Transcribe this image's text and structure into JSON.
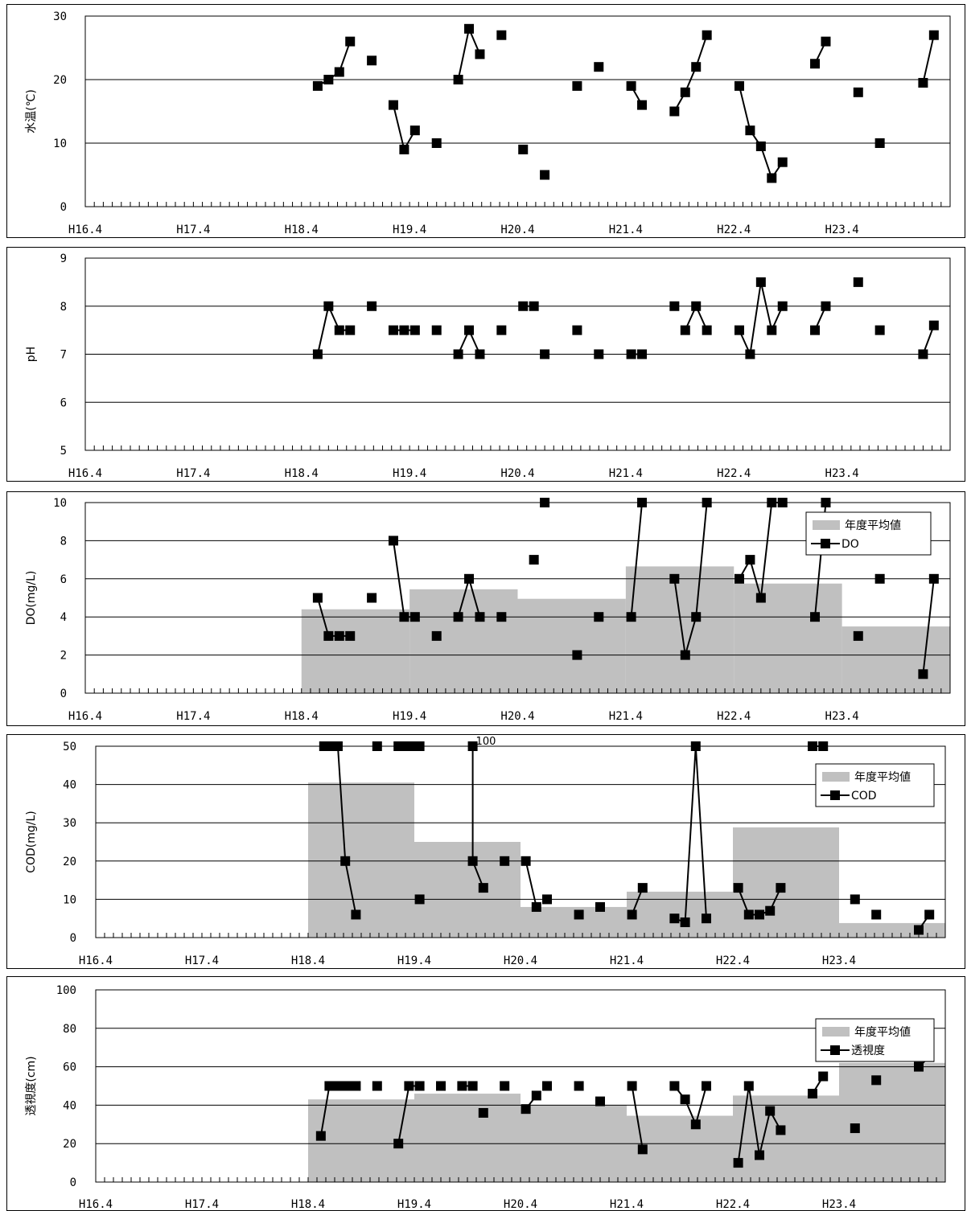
{
  "x_ticks": [
    "H16.4",
    "H17.4",
    "H18.4",
    "H19.4",
    "H20.4",
    "H21.4",
    "H22.4",
    "H23.4"
  ],
  "chart_data": [
    {
      "id": "temp",
      "type": "line",
      "ylabel": "水温(℃)",
      "ylim": [
        0,
        30
      ],
      "yticks": [
        0,
        10,
        20,
        30
      ],
      "grid": true,
      "legend": null,
      "segments": [
        [
          [
            2.15,
            19
          ],
          [
            2.25,
            20
          ],
          [
            2.35,
            21.2
          ],
          [
            2.45,
            26
          ]
        ],
        [
          [
            2.65,
            23
          ]
        ],
        [
          [
            2.85,
            16
          ],
          [
            2.95,
            9
          ],
          [
            3.05,
            12
          ]
        ],
        [
          [
            3.25,
            10
          ]
        ],
        [
          [
            3.45,
            20
          ],
          [
            3.55,
            28
          ],
          [
            3.65,
            24
          ]
        ],
        [
          [
            3.85,
            27
          ]
        ],
        [
          [
            4.05,
            9
          ]
        ],
        [
          [
            4.25,
            5
          ]
        ],
        [
          [
            4.55,
            19
          ]
        ],
        [
          [
            4.75,
            22
          ]
        ],
        [
          [
            5.05,
            19
          ],
          [
            5.15,
            16
          ]
        ],
        [
          [
            5.45,
            15
          ],
          [
            5.55,
            18
          ],
          [
            5.65,
            22
          ],
          [
            5.75,
            27
          ]
        ],
        [
          [
            6.05,
            19
          ],
          [
            6.15,
            12
          ],
          [
            6.25,
            9.5
          ],
          [
            6.35,
            4.5
          ],
          [
            6.45,
            7
          ]
        ],
        [
          [
            6.75,
            22.5
          ],
          [
            6.85,
            26
          ]
        ],
        [
          [
            7.15,
            18
          ]
        ],
        [
          [
            7.35,
            10
          ]
        ],
        [
          [
            7.75,
            19.5
          ],
          [
            7.85,
            27
          ]
        ]
      ]
    },
    {
      "id": "ph",
      "type": "line",
      "ylabel": "pH",
      "ylim": [
        5,
        9
      ],
      "yticks": [
        5,
        6,
        7,
        8,
        9
      ],
      "grid": true,
      "legend": null,
      "segments": [
        [
          [
            2.15,
            7
          ],
          [
            2.25,
            8
          ],
          [
            2.35,
            7.5
          ],
          [
            2.45,
            7.5
          ]
        ],
        [
          [
            2.65,
            8
          ]
        ],
        [
          [
            2.85,
            7.5
          ],
          [
            2.95,
            7.5
          ],
          [
            3.05,
            7.5
          ]
        ],
        [
          [
            3.25,
            7.5
          ]
        ],
        [
          [
            3.45,
            7
          ],
          [
            3.55,
            7.5
          ],
          [
            3.65,
            7
          ]
        ],
        [
          [
            3.85,
            7.5
          ]
        ],
        [
          [
            4.05,
            8
          ],
          [
            4.15,
            8
          ]
        ],
        [
          [
            4.25,
            7
          ]
        ],
        [
          [
            4.55,
            7.5
          ]
        ],
        [
          [
            4.75,
            7
          ]
        ],
        [
          [
            5.05,
            7
          ],
          [
            5.15,
            7
          ]
        ],
        [
          [
            5.45,
            8
          ]
        ],
        [
          [
            5.55,
            7.5
          ],
          [
            5.65,
            8
          ],
          [
            5.75,
            7.5
          ]
        ],
        [
          [
            6.05,
            7.5
          ],
          [
            6.15,
            7
          ],
          [
            6.25,
            8.5
          ],
          [
            6.35,
            7.5
          ],
          [
            6.45,
            8
          ]
        ],
        [
          [
            6.75,
            7.5
          ],
          [
            6.85,
            8
          ]
        ],
        [
          [
            7.15,
            8.5
          ]
        ],
        [
          [
            7.35,
            7.5
          ]
        ],
        [
          [
            7.75,
            7
          ],
          [
            7.85,
            7.6
          ]
        ]
      ]
    },
    {
      "id": "do",
      "type": "line",
      "ylabel": "DO(mg/L)",
      "ylim": [
        0,
        10
      ],
      "yticks": [
        0,
        2,
        4,
        6,
        8,
        10
      ],
      "grid": true,
      "legend": {
        "avg": "年度平均値",
        "series": "DO"
      },
      "annual_average": [
        {
          "from": 2,
          "to": 3,
          "value": 4.4
        },
        {
          "from": 3,
          "to": 4,
          "value": 5.45
        },
        {
          "from": 4,
          "to": 5,
          "value": 4.95
        },
        {
          "from": 5,
          "to": 6,
          "value": 6.65
        },
        {
          "from": 6,
          "to": 7,
          "value": 5.75
        },
        {
          "from": 7,
          "to": 8,
          "value": 3.5
        }
      ],
      "segments": [
        [
          [
            2.15,
            5
          ],
          [
            2.25,
            3
          ],
          [
            2.35,
            3
          ],
          [
            2.45,
            3
          ]
        ],
        [
          [
            2.65,
            5
          ]
        ],
        [
          [
            2.85,
            8
          ],
          [
            2.95,
            4
          ],
          [
            3.05,
            4
          ]
        ],
        [
          [
            3.25,
            3
          ]
        ],
        [
          [
            3.45,
            4
          ],
          [
            3.55,
            6
          ],
          [
            3.65,
            4
          ]
        ],
        [
          [
            3.85,
            4
          ]
        ],
        [
          [
            4.15,
            7
          ]
        ],
        [
          [
            4.25,
            10
          ]
        ],
        [
          [
            4.55,
            2
          ]
        ],
        [
          [
            4.75,
            4
          ]
        ],
        [
          [
            5.05,
            4
          ],
          [
            5.15,
            10
          ]
        ],
        [
          [
            5.45,
            6
          ],
          [
            5.55,
            2
          ],
          [
            5.65,
            4
          ],
          [
            5.75,
            10
          ]
        ],
        [
          [
            6.05,
            6
          ],
          [
            6.15,
            7
          ],
          [
            6.25,
            5
          ],
          [
            6.35,
            10
          ],
          [
            6.45,
            10
          ]
        ],
        [
          [
            6.75,
            4
          ],
          [
            6.85,
            10
          ]
        ],
        [
          [
            7.15,
            3
          ]
        ],
        [
          [
            7.35,
            6
          ]
        ],
        [
          [
            7.75,
            1
          ],
          [
            7.85,
            6
          ]
        ]
      ]
    },
    {
      "id": "cod",
      "type": "line",
      "ylabel": "COD(mg/L)",
      "ylim": [
        0,
        50
      ],
      "yticks": [
        0,
        10,
        20,
        30,
        40,
        50
      ],
      "grid": true,
      "legend": {
        "avg": "年度平均値",
        "series": "COD"
      },
      "annotation": {
        "text": "100",
        "x": 3.58,
        "y": 50
      },
      "annual_average": [
        {
          "from": 2,
          "to": 3,
          "value": 40.5
        },
        {
          "from": 3,
          "to": 4,
          "value": 25
        },
        {
          "from": 4,
          "to": 5,
          "value": 8
        },
        {
          "from": 5,
          "to": 6,
          "value": 12
        },
        {
          "from": 6,
          "to": 7,
          "value": 28.8
        },
        {
          "from": 7,
          "to": 8,
          "value": 3.8
        }
      ],
      "segments": [
        [
          [
            2.15,
            50
          ],
          [
            2.22,
            50
          ],
          [
            2.28,
            50
          ],
          [
            2.35,
            20
          ],
          [
            2.45,
            6
          ]
        ],
        [
          [
            2.65,
            50
          ]
        ],
        [
          [
            2.85,
            50
          ],
          [
            2.92,
            50
          ],
          [
            2.98,
            50
          ],
          [
            3.05,
            50
          ]
        ],
        [
          [
            3.05,
            10
          ]
        ],
        [
          [
            3.55,
            100
          ],
          [
            3.55,
            20
          ],
          [
            3.65,
            13
          ]
        ],
        [
          [
            3.85,
            20
          ]
        ],
        [
          [
            4.05,
            20
          ],
          [
            4.15,
            8
          ]
        ],
        [
          [
            4.25,
            10
          ]
        ],
        [
          [
            4.55,
            6
          ]
        ],
        [
          [
            4.75,
            8
          ]
        ],
        [
          [
            5.05,
            6
          ],
          [
            5.15,
            13
          ]
        ],
        [
          [
            5.45,
            5
          ],
          [
            5.55,
            4
          ],
          [
            5.65,
            50
          ],
          [
            5.75,
            5
          ]
        ],
        [
          [
            6.05,
            13
          ],
          [
            6.15,
            6
          ],
          [
            6.25,
            6
          ],
          [
            6.35,
            7
          ],
          [
            6.45,
            13
          ]
        ],
        [
          [
            6.75,
            50
          ],
          [
            6.85,
            50
          ]
        ],
        [
          [
            7.15,
            10
          ]
        ],
        [
          [
            7.35,
            6
          ]
        ],
        [
          [
            7.75,
            2
          ],
          [
            7.85,
            6
          ]
        ]
      ]
    },
    {
      "id": "transparency",
      "type": "line",
      "ylabel": "透視度(cm)",
      "ylim": [
        0,
        100
      ],
      "yticks": [
        0,
        20,
        40,
        60,
        80,
        100
      ],
      "grid": true,
      "legend": {
        "avg": "年度平均値",
        "series": "透視度"
      },
      "annual_average": [
        {
          "from": 2,
          "to": 3,
          "value": 43
        },
        {
          "from": 3,
          "to": 4,
          "value": 46
        },
        {
          "from": 4,
          "to": 5,
          "value": 40
        },
        {
          "from": 5,
          "to": 6,
          "value": 34.5
        },
        {
          "from": 6,
          "to": 7,
          "value": 45
        },
        {
          "from": 7,
          "to": 8,
          "value": 62
        }
      ],
      "segments": [
        [
          [
            2.12,
            24
          ],
          [
            2.2,
            50
          ],
          [
            2.28,
            50
          ],
          [
            2.36,
            50
          ],
          [
            2.45,
            50
          ]
        ],
        [
          [
            2.65,
            50
          ]
        ],
        [
          [
            2.85,
            20
          ],
          [
            2.95,
            50
          ],
          [
            3.05,
            50
          ]
        ],
        [
          [
            3.25,
            50
          ]
        ],
        [
          [
            3.45,
            50
          ],
          [
            3.55,
            50
          ]
        ],
        [
          [
            3.65,
            36
          ]
        ],
        [
          [
            3.85,
            50
          ]
        ],
        [
          [
            4.05,
            38
          ],
          [
            4.15,
            45
          ]
        ],
        [
          [
            4.25,
            50
          ]
        ],
        [
          [
            4.55,
            50
          ]
        ],
        [
          [
            4.75,
            42
          ]
        ],
        [
          [
            5.05,
            50
          ],
          [
            5.15,
            17
          ]
        ],
        [
          [
            5.45,
            50
          ],
          [
            5.55,
            43
          ],
          [
            5.65,
            30
          ],
          [
            5.75,
            50
          ]
        ],
        [
          [
            6.05,
            10
          ],
          [
            6.15,
            50
          ],
          [
            6.25,
            14
          ],
          [
            6.35,
            37
          ],
          [
            6.45,
            27
          ]
        ],
        [
          [
            6.75,
            46
          ],
          [
            6.85,
            55
          ]
        ],
        [
          [
            7.15,
            28
          ]
        ],
        [
          [
            7.35,
            53
          ]
        ],
        [
          [
            7.75,
            60
          ],
          [
            7.85,
            65
          ]
        ]
      ]
    }
  ]
}
